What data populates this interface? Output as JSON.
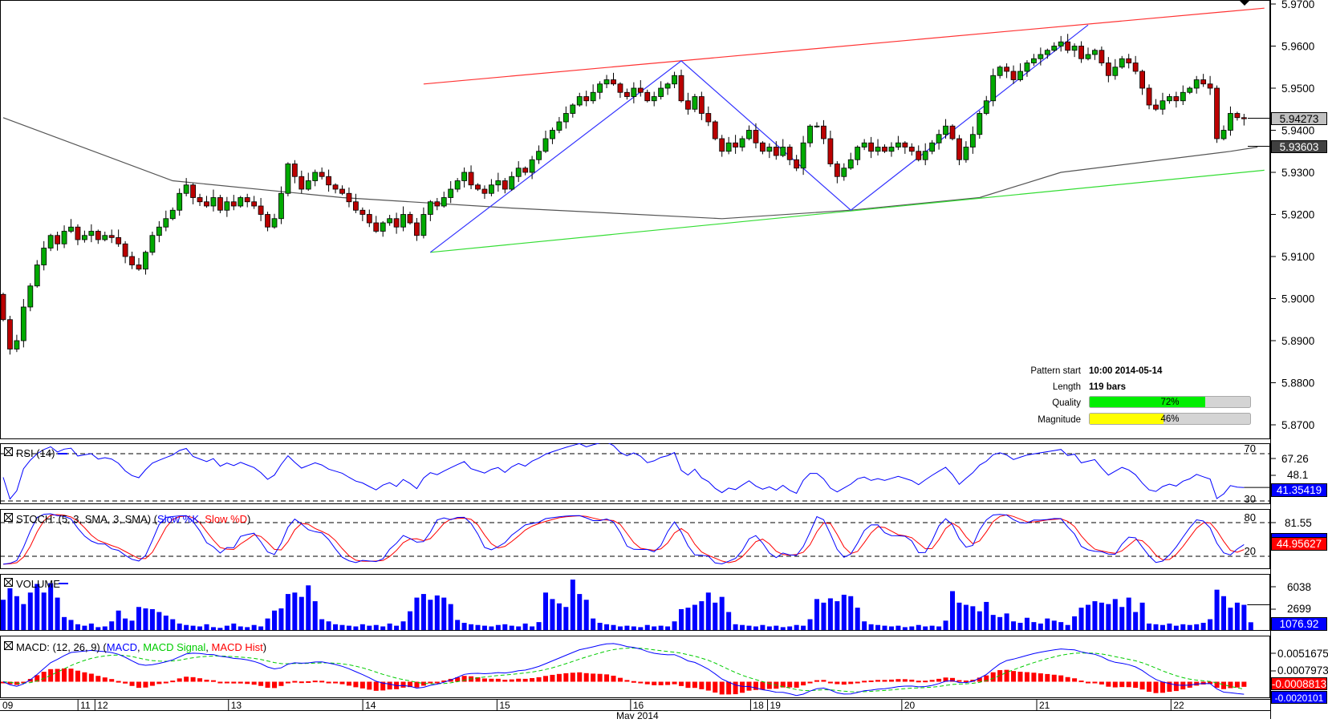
{
  "chart_data": [
    {
      "type": "candlestick",
      "title": "Price",
      "series_note": "closes per bar (open = previous close)",
      "closes": [
        5.895,
        5.888,
        5.89,
        5.898,
        5.903,
        5.908,
        5.912,
        5.915,
        5.913,
        5.916,
        5.917,
        5.914,
        5.915,
        5.916,
        5.914,
        5.915,
        5.9145,
        5.913,
        5.91,
        5.908,
        5.907,
        5.911,
        5.915,
        5.917,
        5.919,
        5.921,
        5.925,
        5.927,
        5.924,
        5.923,
        5.922,
        5.924,
        5.921,
        5.923,
        5.922,
        5.924,
        5.923,
        5.922,
        5.92,
        5.917,
        5.919,
        5.925,
        5.932,
        5.929,
        5.926,
        5.928,
        5.93,
        5.929,
        5.927,
        5.926,
        5.925,
        5.923,
        5.921,
        5.92,
        5.918,
        5.916,
        5.918,
        5.919,
        5.917,
        5.92,
        5.918,
        5.915,
        5.92,
        5.923,
        5.922,
        5.924,
        5.926,
        5.928,
        5.93,
        5.927,
        5.926,
        5.925,
        5.927,
        5.928,
        5.926,
        5.929,
        5.931,
        5.93,
        5.933,
        5.935,
        5.938,
        5.94,
        5.942,
        5.944,
        5.946,
        5.948,
        5.947,
        5.949,
        5.951,
        5.952,
        5.951,
        5.949,
        5.948,
        5.95,
        5.949,
        5.947,
        5.948,
        5.95,
        5.951,
        5.953,
        5.947,
        5.945,
        5.948,
        5.944,
        5.942,
        5.938,
        5.935,
        5.937,
        5.936,
        5.938,
        5.94,
        5.937,
        5.935,
        5.936,
        5.934,
        5.936,
        5.933,
        5.931,
        5.937,
        5.941,
        5.941,
        5.938,
        5.932,
        5.929,
        5.931,
        5.933,
        5.936,
        5.937,
        5.935,
        5.936,
        5.935,
        5.936,
        5.937,
        5.936,
        5.935,
        5.933,
        5.935,
        5.937,
        5.939,
        5.941,
        5.938,
        5.933,
        5.936,
        5.939,
        5.944,
        5.947,
        5.953,
        5.955,
        5.954,
        5.952,
        5.954,
        5.956,
        5.957,
        5.958,
        5.959,
        5.96,
        5.961,
        5.959,
        5.96,
        5.957,
        5.958,
        5.959,
        5.956,
        5.953,
        5.955,
        5.957,
        5.956,
        5.954,
        5.95,
        5.946,
        5.945,
        5.947,
        5.948,
        5.947,
        5.949,
        5.95,
        5.952,
        5.951,
        5.95,
        5.938,
        5.94,
        5.944,
        5.943,
        5.94273
      ],
      "first_open": 5.901,
      "moving_average": [
        [
          0,
          5.943
        ],
        [
          25,
          5.928
        ],
        [
          50,
          5.924
        ],
        [
          75,
          5.9215
        ],
        [
          106,
          5.919
        ],
        [
          125,
          5.921
        ],
        [
          144,
          5.924
        ],
        [
          156,
          5.93
        ],
        [
          181,
          5.935
        ],
        [
          185,
          5.936
        ]
      ],
      "resistance_line": [
        [
          62,
          5.951
        ],
        [
          186,
          5.969
        ]
      ],
      "support_line": [
        [
          63,
          5.911
        ],
        [
          186,
          5.9305
        ]
      ],
      "pattern_zigzag": [
        [
          63,
          5.911
        ],
        [
          100,
          5.9565
        ],
        [
          125,
          5.921
        ],
        [
          160,
          5.965
        ]
      ],
      "ylim": [
        5.87,
        5.97
      ],
      "yticks": [
        "5.9700",
        "5.9600",
        "5.9500",
        "5.9400",
        "5.9300",
        "5.9200",
        "5.9100",
        "5.9000",
        "5.8900",
        "5.8800",
        "5.8700"
      ],
      "last_price": "5.94273",
      "ma_value": "5.93603"
    },
    {
      "type": "line",
      "title": "RSI",
      "label": "RSI (14)",
      "levels": [
        "70",
        "30"
      ],
      "yticks": [
        "67.26",
        "48.1"
      ],
      "last_value": "41.35419"
    },
    {
      "type": "line",
      "title": "STOCH",
      "label_prefix": "STOCH: (5, 3, SMA, 3, SMA) (",
      "series": [
        {
          "name": "Slow %K",
          "color": "#0000ff"
        },
        {
          "name": "Slow %D",
          "color": "#ff0000"
        }
      ],
      "sep": ", ",
      "suffix": ")",
      "levels": [
        "80",
        "20"
      ],
      "yticks": [
        "81.55"
      ],
      "last_value": "44.95627"
    },
    {
      "type": "bar",
      "title": "VOLUME",
      "label": "VOLUME",
      "values": [
        4200,
        5800,
        4700,
        3600,
        5200,
        6400,
        5200,
        6500,
        4500,
        1800,
        1400,
        800,
        600,
        900,
        400,
        500,
        1200,
        2700,
        1600,
        1300,
        3200,
        3000,
        2900,
        2500,
        2000,
        1500,
        900,
        700,
        600,
        500,
        800,
        400,
        300,
        600,
        900,
        500,
        400,
        700,
        500,
        1600,
        2700,
        3000,
        5000,
        5200,
        4600,
        6200,
        4000,
        1500,
        1200,
        800,
        700,
        600,
        500,
        800,
        600,
        700,
        500,
        900,
        600,
        1200,
        2600,
        4500,
        5000,
        4200,
        4800,
        4500,
        3600,
        1400,
        1000,
        800,
        700,
        600,
        500,
        700,
        800,
        600,
        500,
        900,
        500,
        1100,
        5200,
        4300,
        3700,
        3200,
        7000,
        5000,
        4200,
        1600,
        1000,
        800,
        700,
        500,
        600,
        500,
        400,
        700,
        500,
        600,
        500,
        1200,
        2900,
        3100,
        3500,
        4000,
        5200,
        3800,
        4600,
        2500,
        800,
        700,
        600,
        500,
        700,
        500,
        600,
        400,
        500,
        700,
        600,
        1500,
        4300,
        3800,
        4400,
        4000,
        4900,
        4700,
        3100,
        1200,
        800,
        700,
        600,
        500,
        600,
        400,
        500,
        700,
        500,
        600,
        500,
        1300,
        5400,
        3800,
        3500,
        3300,
        2600,
        3900,
        2100,
        1800,
        2300,
        1200,
        1000,
        1700,
        1100,
        900,
        1600,
        1300,
        1100,
        700,
        1900,
        3100,
        3500,
        4000,
        3800,
        3600,
        4300,
        3200,
        4500,
        2500,
        3800,
        900,
        800,
        700,
        900,
        600,
        800,
        700,
        800,
        1000,
        1500,
        5600,
        4700,
        3100,
        3800,
        3500,
        1077
      ],
      "yticks": [
        "6038",
        "2699"
      ],
      "last_value": "1076.92"
    },
    {
      "type": "line",
      "title": "MACD",
      "label_prefix": "MACD: (12, 26, 9) (",
      "series": [
        {
          "name": "MACD",
          "color": "#0000ff"
        },
        {
          "name": "MACD Signal",
          "color": "#00cc00"
        },
        {
          "name": "MACD Hist",
          "color": "#ff0000"
        }
      ],
      "sep": ", ",
      "suffix": ")",
      "yticks": [
        "0.0051675",
        "0.0007973"
      ],
      "hist_value": "-0.0008813",
      "macd_value": "-0.0020101"
    }
  ],
  "x_axis": {
    "days": [
      {
        "label": "09",
        "bar": 0
      },
      {
        "label": "11",
        "bar": 11.5
      },
      {
        "label": "12",
        "bar": 14
      },
      {
        "label": "13",
        "bar": 33.7
      },
      {
        "label": "14",
        "bar": 53.5
      },
      {
        "label": "15",
        "bar": 73.3
      },
      {
        "label": "16",
        "bar": 93
      },
      {
        "label": "18",
        "bar": 110.7
      },
      {
        "label": "19",
        "bar": 113.2
      },
      {
        "label": "20",
        "bar": 133
      },
      {
        "label": "21",
        "bar": 152.9
      },
      {
        "label": "22",
        "bar": 172.7
      }
    ],
    "month_label": "May 2014"
  },
  "info": {
    "pattern_start_label": "Pattern start",
    "pattern_start_value": "10:00 2014-05-14",
    "length_label": "Length",
    "length_value": "119 bars",
    "quality_label": "Quality",
    "quality_text": "72%",
    "quality_pct": 72,
    "magnitude_label": "Magnitude",
    "magnitude_text": "46%",
    "magnitude_pct": 46
  },
  "colors": {
    "up": "#00aa00",
    "down": "#bb0000",
    "resistance": "#ff3333",
    "support": "#33dd33",
    "zigzag": "#3333ff",
    "ma": "#555555",
    "quality": "#00ee00",
    "magnitude": "#ffff00",
    "blue": "#0000ff",
    "red": "#ff0000",
    "green": "#00cc00"
  }
}
